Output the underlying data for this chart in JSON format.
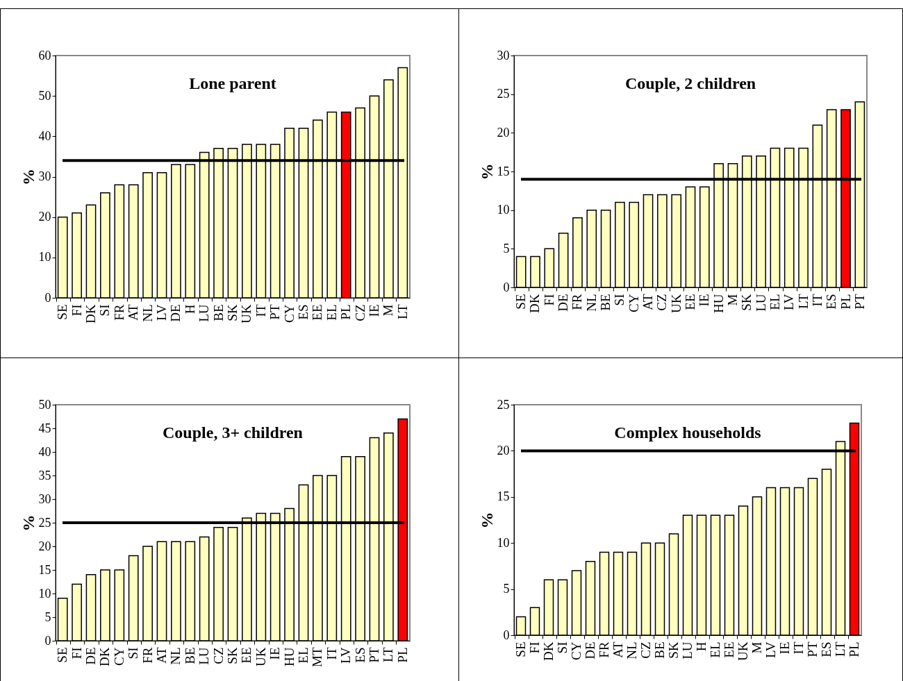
{
  "chart_data": [
    {
      "type": "bar",
      "title": "Lone parent",
      "ylabel": "%",
      "categories": [
        "SE",
        "FI",
        "DK",
        "SI",
        "FR",
        "AT",
        "NL",
        "LV",
        "DE",
        "H",
        "LU",
        "BE",
        "SK",
        "UK",
        "IT",
        "PT",
        "CY",
        "ES",
        "EE",
        "EL",
        "PL",
        "CZ",
        "IE",
        "M",
        "LT"
      ],
      "values": [
        20,
        21,
        23,
        26,
        28,
        28,
        31,
        31,
        33,
        33,
        36,
        37,
        37,
        38,
        38,
        38,
        42,
        42,
        44,
        46,
        46,
        47,
        50,
        54,
        57
      ],
      "colors": [
        "#ffffc0",
        "#ffffc0",
        "#ffffc0",
        "#ffffc0",
        "#ffffc0",
        "#ffffc0",
        "#ffffc0",
        "#ffffc0",
        "#ffffc0",
        "#ffffc0",
        "#ffffc0",
        "#ffffc0",
        "#ffffc0",
        "#ffffc0",
        "#ffffc0",
        "#ffffc0",
        "#ffffc0",
        "#ffffc0",
        "#ffffc0",
        "#ffffc0",
        "#ff0000",
        "#ffffc0",
        "#ffffc0",
        "#ffffc0",
        "#ffffc0"
      ],
      "ylim": [
        0,
        60
      ],
      "yticks": [
        0,
        10,
        20,
        30,
        40,
        50,
        60
      ],
      "ref_lines": [
        {
          "axis": "y",
          "value": 34,
          "color": "#000000"
        }
      ],
      "grid": false
    },
    {
      "type": "bar",
      "title": "Couple, 2 children",
      "ylabel": "%",
      "categories": [
        "SE",
        "DK",
        "FI",
        "DE",
        "FR",
        "NL",
        "BE",
        "SI",
        "CY",
        "AT",
        "CZ",
        "UK",
        "EE",
        "IE",
        "HU",
        "M",
        "SK",
        "LU",
        "EL",
        "LV",
        "LT",
        "IT",
        "ES",
        "PL",
        "PT"
      ],
      "values": [
        4,
        4,
        5,
        7,
        9,
        10,
        10,
        11,
        11,
        12,
        12,
        12,
        13,
        13,
        16,
        16,
        17,
        17,
        18,
        18,
        18,
        21,
        23,
        23,
        24
      ],
      "colors": [
        "#ffffc0",
        "#ffffc0",
        "#ffffc0",
        "#ffffc0",
        "#ffffc0",
        "#ffffc0",
        "#ffffc0",
        "#ffffc0",
        "#ffffc0",
        "#ffffc0",
        "#ffffc0",
        "#ffffc0",
        "#ffffc0",
        "#ffffc0",
        "#ffffc0",
        "#ffffc0",
        "#ffffc0",
        "#ffffc0",
        "#ffffc0",
        "#ffffc0",
        "#ffffc0",
        "#ffffc0",
        "#ffffc0",
        "#ff0000",
        "#ffffc0"
      ],
      "ylim": [
        0,
        30
      ],
      "yticks": [
        0,
        5,
        10,
        15,
        20,
        25,
        30
      ],
      "ref_lines": [
        {
          "axis": "y",
          "value": 14,
          "color": "#000000"
        }
      ],
      "grid": false
    },
    {
      "type": "bar",
      "title": "Couple, 3+ children",
      "ylabel": "%",
      "categories": [
        "SE",
        "FI",
        "DE",
        "DK",
        "CY",
        "SI",
        "FR",
        "AT",
        "NL",
        "BE",
        "LU",
        "CZ",
        "SK",
        "EE",
        "UK",
        "IE",
        "HU",
        "EL",
        "MT",
        "IT",
        "LV",
        "ES",
        "PT",
        "LT",
        "PL"
      ],
      "values": [
        9,
        12,
        14,
        15,
        15,
        18,
        20,
        21,
        21,
        21,
        22,
        24,
        24,
        26,
        27,
        27,
        28,
        33,
        35,
        35,
        39,
        39,
        43,
        44,
        47
      ],
      "colors": [
        "#ffffc0",
        "#ffffc0",
        "#ffffc0",
        "#ffffc0",
        "#ffffc0",
        "#ffffc0",
        "#ffffc0",
        "#ffffc0",
        "#ffffc0",
        "#ffffc0",
        "#ffffc0",
        "#ffffc0",
        "#ffffc0",
        "#ffffc0",
        "#ffffc0",
        "#ffffc0",
        "#ffffc0",
        "#ffffc0",
        "#ffffc0",
        "#ffffc0",
        "#ffffc0",
        "#ffffc0",
        "#ffffc0",
        "#ffffc0",
        "#ff0000"
      ],
      "ylim": [
        0,
        50
      ],
      "yticks": [
        0,
        5,
        10,
        15,
        20,
        25,
        30,
        35,
        40,
        45,
        50
      ],
      "ref_lines": [
        {
          "axis": "y",
          "value": 25,
          "color": "#000000"
        }
      ],
      "grid": false
    },
    {
      "type": "bar",
      "title": "Complex households",
      "ylabel": "%",
      "categories": [
        "SE",
        "FI",
        "DK",
        "SI",
        "CY",
        "DE",
        "FR",
        "AT",
        "NL",
        "CZ",
        "BE",
        "SK",
        "LU",
        "H",
        "EL",
        "EE",
        "UK",
        "M",
        "LV",
        "IE",
        "IT",
        "PT",
        "ES",
        "LT",
        "PL"
      ],
      "values": [
        2,
        3,
        6,
        6,
        7,
        8,
        9,
        9,
        9,
        10,
        10,
        11,
        13,
        13,
        13,
        13,
        14,
        15,
        16,
        16,
        16,
        17,
        18,
        21,
        23
      ],
      "colors": [
        "#ffffc0",
        "#ffffc0",
        "#ffffc0",
        "#ffffc0",
        "#ffffc0",
        "#ffffc0",
        "#ffffc0",
        "#ffffc0",
        "#ffffc0",
        "#ffffc0",
        "#ffffc0",
        "#ffffc0",
        "#ffffc0",
        "#ffffc0",
        "#ffffc0",
        "#ffffc0",
        "#ffffc0",
        "#ffffc0",
        "#ffffc0",
        "#ffffc0",
        "#ffffc0",
        "#ffffc0",
        "#ffffc0",
        "#ffffc0",
        "#ff0000"
      ],
      "ylim": [
        0,
        25
      ],
      "yticks": [
        0,
        5,
        10,
        15,
        20,
        25
      ],
      "ref_lines": [
        {
          "axis": "y",
          "value": 20,
          "color": "#000000"
        }
      ],
      "grid": false
    }
  ]
}
